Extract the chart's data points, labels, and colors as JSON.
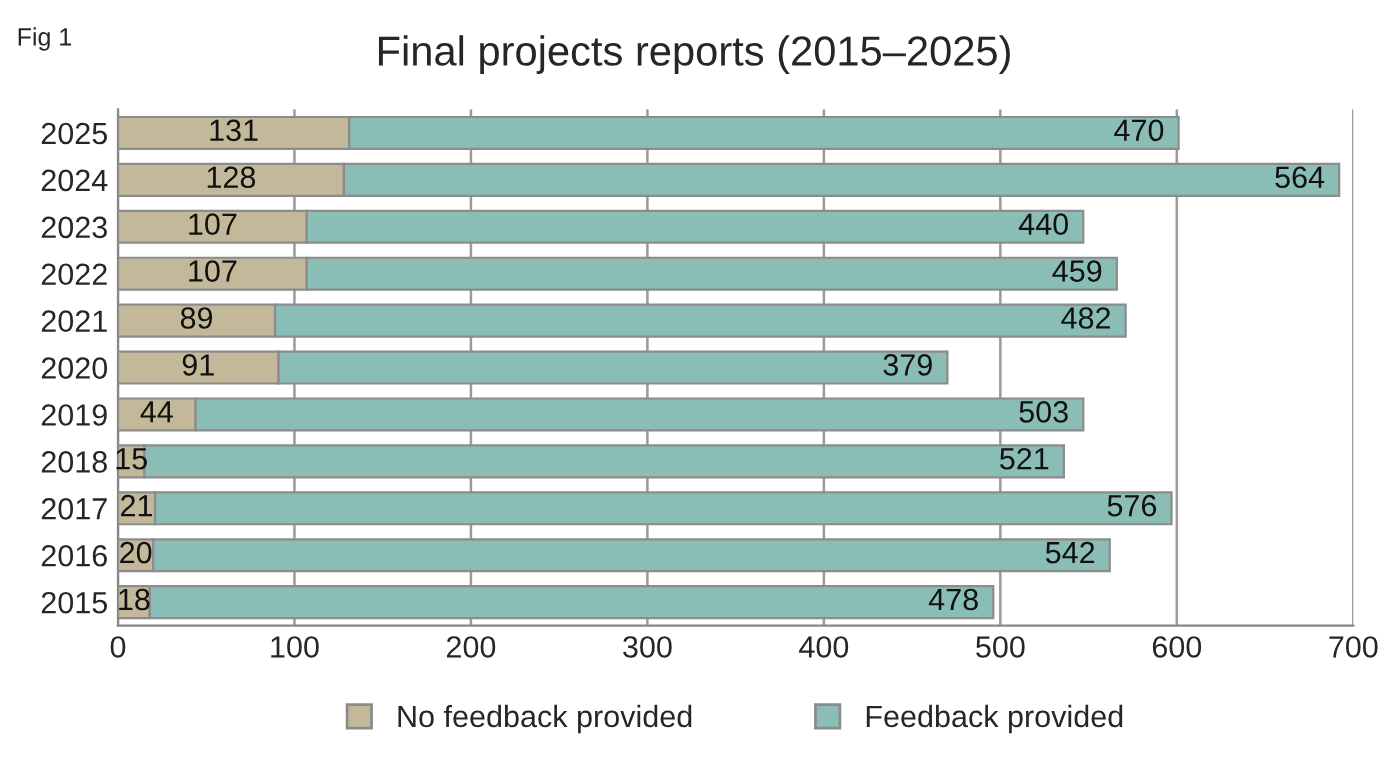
{
  "chart_data": {
    "type": "bar",
    "title": "Final projects reports (2015–2025)",
    "orientation": "horizontal",
    "stacked": true,
    "categories": [
      "2025",
      "2024",
      "2023",
      "2022",
      "2021",
      "2020",
      "2019",
      "2018",
      "2017",
      "2016",
      "2015"
    ],
    "series": [
      {
        "name": "No feedback provided",
        "color": "#c4b89b",
        "values": [
          131,
          128,
          107,
          107,
          89,
          91,
          44,
          15,
          21,
          20,
          18
        ]
      },
      {
        "name": "Feedback provided",
        "color": "#8bbdb7",
        "values": [
          470,
          564,
          440,
          459,
          482,
          379,
          503,
          521,
          576,
          542,
          478
        ]
      }
    ],
    "xlim": [
      0,
      700
    ],
    "xticks": [
      0,
      100,
      200,
      300,
      400,
      500,
      600,
      700
    ],
    "grid": "x",
    "legend": "bottom",
    "data_labels": true,
    "annotations": [
      "Fig 1"
    ]
  }
}
